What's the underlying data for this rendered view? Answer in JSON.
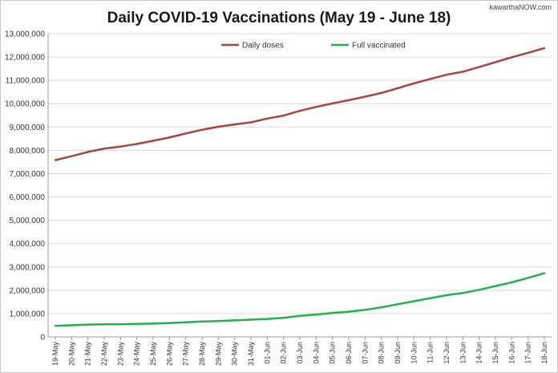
{
  "watermark": "kawarthaNOW.com",
  "chart_data": {
    "type": "line",
    "title": "Daily COVID-19 Vaccinations (May 19 - June 18)",
    "xlabel": "",
    "ylabel": "",
    "ylim": [
      0,
      13000000
    ],
    "y_ticks": [
      0,
      1000000,
      2000000,
      3000000,
      4000000,
      5000000,
      6000000,
      7000000,
      8000000,
      9000000,
      10000000,
      11000000,
      12000000,
      13000000
    ],
    "y_tick_labels": [
      "0",
      "1,000,000",
      "2,000,000",
      "3,000,000",
      "4,000,000",
      "5,000,000",
      "6,000,000",
      "7,000,000",
      "8,000,000",
      "9,000,000",
      "10,000,000",
      "11,000,000",
      "12,000,000",
      "13,000,000"
    ],
    "grid": true,
    "legend_position": "top",
    "categories": [
      "19-May",
      "20-May",
      "21-May",
      "22-May",
      "23-May",
      "24-May",
      "25-May",
      "26-May",
      "27-May",
      "28-May",
      "29-May",
      "30-May",
      "31-May",
      "01-Jun",
      "02-Jun",
      "03-Jun",
      "04-Jun",
      "05-Jun",
      "06-Jun",
      "07-Jun",
      "08-Jun",
      "09-Jun",
      "10-Jun",
      "11-Jun",
      "12-Jun",
      "13-Jun",
      "14-Jun",
      "15-Jun",
      "16-Jun",
      "17-Jun",
      "18-Jun"
    ],
    "series": [
      {
        "name": "Daily doses",
        "color": "#a94442",
        "values": [
          7580000,
          7750000,
          7930000,
          8070000,
          8160000,
          8270000,
          8410000,
          8550000,
          8720000,
          8880000,
          9010000,
          9110000,
          9200000,
          9360000,
          9490000,
          9690000,
          9860000,
          10010000,
          10150000,
          10300000,
          10460000,
          10660000,
          10870000,
          11060000,
          11240000,
          11370000,
          11570000,
          11780000,
          11990000,
          12180000,
          12380000
        ]
      },
      {
        "name": "Full vaccinated",
        "color": "#22b14c",
        "values": [
          470000,
          500000,
          530000,
          540000,
          540000,
          560000,
          570000,
          590000,
          630000,
          660000,
          680000,
          710000,
          740000,
          770000,
          820000,
          900000,
          960000,
          1030000,
          1080000,
          1160000,
          1270000,
          1400000,
          1530000,
          1660000,
          1790000,
          1880000,
          2020000,
          2180000,
          2340000,
          2530000,
          2730000
        ]
      }
    ]
  }
}
